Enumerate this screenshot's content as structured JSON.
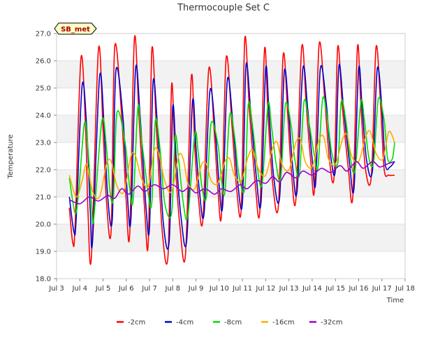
{
  "chart_data": {
    "type": "line",
    "title": "Thermocouple Set C",
    "xlabel": "Time",
    "ylabel": "Temperature",
    "annotation": "SB_met",
    "xlim": [
      3.0,
      18.0
    ],
    "ylim": [
      18.0,
      27.0
    ],
    "x_ticks": [
      3,
      4,
      5,
      6,
      7,
      8,
      9,
      10,
      11,
      12,
      13,
      14,
      15,
      16,
      17,
      18
    ],
    "x_tick_labels": [
      "Jul 3",
      "Jul 4",
      "Jul 5",
      "Jul 6",
      "Jul 7",
      "Jul 8",
      "Jul 9",
      "Jul 10",
      "Jul 11",
      "Jul 12",
      "Jul 13",
      "Jul 14",
      "Jul 15",
      "Jul 16",
      "Jul 17",
      "Jul 18"
    ],
    "y_ticks": [
      18.0,
      19.0,
      20.0,
      21.0,
      22.0,
      23.0,
      24.0,
      25.0,
      26.0,
      27.0
    ],
    "y_tick_labels": [
      "18.0",
      "19.0",
      "20.0",
      "21.0",
      "22.0",
      "23.0",
      "24.0",
      "25.0",
      "26.0",
      "27.0"
    ],
    "grid": true,
    "legend_position": "bottom",
    "series": [
      {
        "name": "-2cm",
        "color": "#ff0000",
        "x": [
          3.55,
          3.7,
          3.8,
          4.05,
          4.25,
          4.35,
          4.5,
          4.8,
          5.0,
          5.15,
          5.35,
          5.5,
          5.8,
          6.0,
          6.15,
          6.35,
          6.55,
          6.8,
          6.95,
          7.1,
          7.3,
          7.55,
          7.8,
          7.95,
          8.1,
          8.3,
          8.55,
          8.8,
          8.95,
          9.1,
          9.3,
          9.55,
          9.8,
          9.95,
          10.1,
          10.3,
          10.55,
          10.75,
          10.95,
          11.1,
          11.3,
          11.55,
          11.75,
          11.95,
          12.1,
          12.3,
          12.55,
          12.75,
          12.95,
          13.1,
          13.3,
          13.55,
          13.75,
          13.95,
          14.1,
          14.3,
          14.55,
          14.75,
          14.95,
          15.1,
          15.3,
          15.55,
          15.75,
          15.95,
          16.1,
          16.3,
          16.55,
          16.75,
          16.95,
          17.1,
          17.3,
          17.55
        ],
        "y": [
          20.6,
          19.3,
          20.0,
          26.1,
          23.5,
          20.5,
          18.8,
          26.4,
          23.5,
          20.8,
          19.8,
          26.5,
          24.0,
          20.8,
          19.7,
          26.8,
          23.9,
          20.4,
          19.4,
          26.4,
          23.5,
          19.7,
          18.9,
          25.1,
          22.4,
          20.0,
          18.9,
          25.4,
          22.8,
          21.0,
          20.2,
          25.7,
          23.2,
          21.2,
          20.4,
          26.1,
          23.6,
          21.3,
          20.6,
          26.8,
          24.2,
          21.5,
          20.5,
          26.4,
          24.0,
          21.5,
          20.7,
          26.2,
          24.0,
          22.0,
          20.9,
          26.5,
          24.3,
          22.2,
          21.3,
          26.6,
          24.5,
          22.3,
          21.8,
          26.5,
          24.3,
          22.1,
          21.0,
          26.5,
          24.3,
          22.0,
          21.8,
          26.5,
          24.3,
          22.0,
          21.8,
          21.8
        ]
      },
      {
        "name": "-4cm",
        "color": "#0000cc",
        "x": [
          3.55,
          3.75,
          3.85,
          4.1,
          4.3,
          4.45,
          4.55,
          4.85,
          5.05,
          5.2,
          5.4,
          5.55,
          5.85,
          6.05,
          6.2,
          6.4,
          6.6,
          6.85,
          7.0,
          7.15,
          7.35,
          7.6,
          7.85,
          8.0,
          8.15,
          8.35,
          8.6,
          8.85,
          9.0,
          9.15,
          9.35,
          9.6,
          9.85,
          10.0,
          10.15,
          10.35,
          10.6,
          10.8,
          11.0,
          11.15,
          11.35,
          11.6,
          11.8,
          12.0,
          12.15,
          12.35,
          12.6,
          12.8,
          13.0,
          13.15,
          13.35,
          13.6,
          13.8,
          14.0,
          14.15,
          14.35,
          14.6,
          14.8,
          15.0,
          15.15,
          15.35,
          15.6,
          15.8,
          16.0,
          16.15,
          16.35,
          16.6,
          16.8,
          17.0,
          17.15,
          17.35,
          17.55
        ],
        "y": [
          21.0,
          19.7,
          20.3,
          25.1,
          23.5,
          20.5,
          19.4,
          25.4,
          23.5,
          21.0,
          20.2,
          25.6,
          24.0,
          21.0,
          20.2,
          25.7,
          23.9,
          20.6,
          19.9,
          25.2,
          23.5,
          20.0,
          19.4,
          24.3,
          22.4,
          20.3,
          19.4,
          24.5,
          22.8,
          21.2,
          20.4,
          24.9,
          23.2,
          21.4,
          20.7,
          25.3,
          23.6,
          21.5,
          20.8,
          25.8,
          24.2,
          21.7,
          20.8,
          25.7,
          24.0,
          21.7,
          21.0,
          25.6,
          24.0,
          22.2,
          21.2,
          25.7,
          24.3,
          22.4,
          21.5,
          25.7,
          24.5,
          22.5,
          22.0,
          25.8,
          24.3,
          22.3,
          21.3,
          25.7,
          24.3,
          22.3,
          22.0,
          25.7,
          24.3,
          22.2,
          22.1,
          22.3
        ]
      },
      {
        "name": "-8cm",
        "color": "#00dd00",
        "x": [
          3.55,
          3.8,
          3.95,
          4.2,
          4.35,
          4.5,
          4.6,
          4.95,
          5.15,
          5.3,
          5.45,
          5.6,
          5.95,
          6.15,
          6.3,
          6.5,
          6.65,
          6.95,
          7.1,
          7.25,
          7.45,
          7.65,
          7.95,
          8.1,
          8.25,
          8.45,
          8.65,
          8.95,
          9.1,
          9.25,
          9.45,
          9.65,
          9.95,
          10.1,
          10.25,
          10.45,
          10.65,
          10.85,
          11.1,
          11.25,
          11.45,
          11.65,
          11.85,
          12.1,
          12.25,
          12.45,
          12.65,
          12.85,
          13.1,
          13.25,
          13.45,
          13.65,
          13.85,
          14.1,
          14.25,
          14.45,
          14.65,
          14.85,
          15.1,
          15.25,
          15.45,
          15.65,
          15.85,
          16.1,
          16.25,
          16.45,
          16.65,
          16.85,
          17.1,
          17.25,
          17.45,
          17.55
        ],
        "y": [
          21.7,
          20.4,
          21.2,
          23.7,
          22.8,
          20.8,
          20.2,
          23.8,
          22.8,
          21.2,
          21.0,
          24.1,
          23.0,
          21.3,
          20.9,
          24.3,
          23.2,
          21.1,
          20.8,
          23.8,
          22.8,
          20.8,
          20.4,
          23.2,
          22.4,
          20.8,
          20.3,
          23.3,
          22.6,
          21.4,
          21.0,
          23.7,
          22.9,
          21.6,
          21.2,
          24.0,
          23.3,
          21.8,
          21.3,
          24.4,
          23.5,
          22.0,
          21.5,
          24.4,
          23.6,
          22.2,
          21.7,
          24.4,
          23.6,
          22.4,
          21.8,
          24.5,
          23.8,
          22.5,
          22.1,
          24.6,
          23.9,
          22.6,
          22.2,
          24.5,
          23.8,
          22.4,
          22.0,
          24.5,
          23.8,
          22.4,
          22.3,
          24.6,
          23.8,
          22.4,
          22.4,
          23.0
        ]
      },
      {
        "name": "-16cm",
        "color": "#ffaa00",
        "x": [
          3.55,
          3.85,
          4.1,
          4.3,
          4.55,
          4.85,
          5.15,
          5.35,
          5.6,
          5.9,
          6.2,
          6.4,
          6.65,
          6.95,
          7.2,
          7.4,
          7.65,
          7.95,
          8.25,
          8.45,
          8.65,
          8.95,
          9.25,
          9.45,
          9.65,
          9.95,
          10.25,
          10.45,
          10.65,
          10.95,
          11.25,
          11.45,
          11.7,
          12.0,
          12.3,
          12.5,
          12.7,
          13.0,
          13.3,
          13.5,
          13.7,
          14.0,
          14.3,
          14.5,
          14.7,
          15.0,
          15.3,
          15.5,
          15.7,
          16.0,
          16.3,
          16.5,
          16.75,
          17.05,
          17.3,
          17.55
        ],
        "y": [
          21.8,
          21.0,
          21.6,
          22.2,
          21.2,
          21.0,
          22.2,
          22.3,
          21.4,
          21.2,
          22.5,
          22.5,
          21.7,
          21.4,
          22.7,
          22.6,
          21.6,
          21.2,
          22.5,
          22.4,
          21.5,
          21.3,
          22.2,
          22.2,
          21.6,
          21.5,
          22.3,
          22.4,
          21.8,
          21.6,
          22.5,
          22.7,
          22.0,
          21.8,
          22.8,
          23.0,
          22.2,
          22.0,
          23.0,
          23.1,
          22.3,
          22.1,
          23.1,
          23.2,
          22.4,
          22.2,
          23.1,
          23.3,
          22.5,
          22.3,
          23.2,
          23.4,
          22.6,
          22.4,
          23.4,
          23.0
        ]
      },
      {
        "name": "-32cm",
        "color": "#9900cc",
        "x": [
          3.55,
          4.0,
          4.4,
          4.8,
          5.2,
          5.5,
          5.8,
          6.1,
          6.5,
          6.8,
          7.2,
          7.6,
          8.0,
          8.4,
          8.7,
          9.0,
          9.4,
          9.8,
          10.1,
          10.5,
          10.9,
          11.2,
          11.6,
          12.0,
          12.3,
          12.6,
          12.9,
          13.3,
          13.6,
          14.0,
          14.4,
          14.8,
          15.2,
          15.5,
          15.9,
          16.2,
          16.6,
          16.9,
          17.2,
          17.55
        ],
        "y": [
          20.9,
          20.75,
          21.0,
          20.85,
          21.05,
          20.95,
          21.3,
          21.1,
          21.4,
          21.2,
          21.45,
          21.3,
          21.45,
          21.2,
          21.35,
          21.15,
          21.3,
          21.1,
          21.3,
          21.2,
          21.45,
          21.3,
          21.6,
          21.5,
          21.75,
          21.55,
          21.9,
          21.7,
          21.95,
          21.8,
          22.05,
          21.9,
          22.15,
          21.95,
          22.3,
          22.05,
          22.3,
          22.1,
          22.2,
          22.3
        ]
      }
    ]
  }
}
